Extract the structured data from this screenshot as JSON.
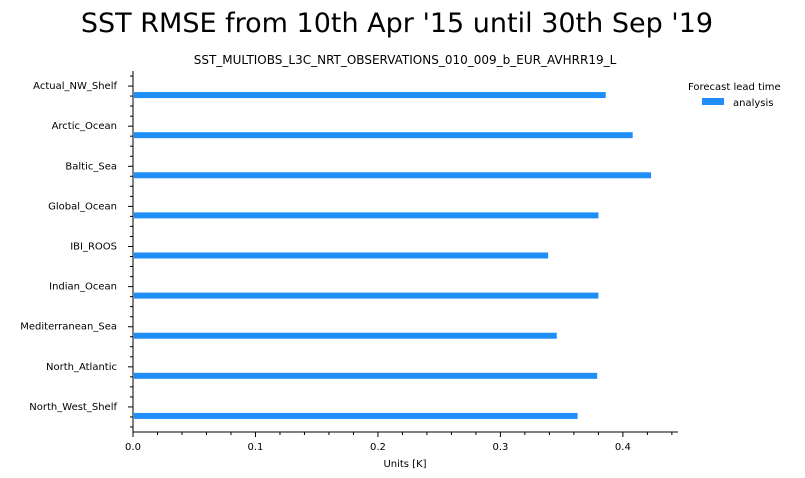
{
  "chart_data": {
    "type": "bar",
    "orientation": "horizontal",
    "suptitle": "SST RMSE from 10th Apr '15 until 30th Sep '19",
    "title": "SST_MULTIOBS_L3C_NRT_OBSERVATIONS_010_009_b_EUR_AVHRR19_L",
    "xlabel": "Units [K]",
    "ylabel": "",
    "xlim": [
      0,
      0.445
    ],
    "xticks": [
      "0.0",
      "0.1",
      "0.2",
      "0.3",
      "0.4"
    ],
    "categories": [
      "Actual_NW_Shelf",
      "Arctic_Ocean",
      "Baltic_Sea",
      "Global_Ocean",
      "IBI_ROOS",
      "Indian_Ocean",
      "Mediterranean_Sea",
      "North_Atlantic",
      "North_West_Shelf"
    ],
    "series": [
      {
        "name": "analysis",
        "color": "#1f8ff7",
        "values": [
          0.386,
          0.408,
          0.423,
          0.38,
          0.339,
          0.38,
          0.346,
          0.379,
          0.363
        ]
      }
    ],
    "legend": {
      "title": "Forecast lead time",
      "placement": "upper-right-outside"
    },
    "grid": false
  }
}
